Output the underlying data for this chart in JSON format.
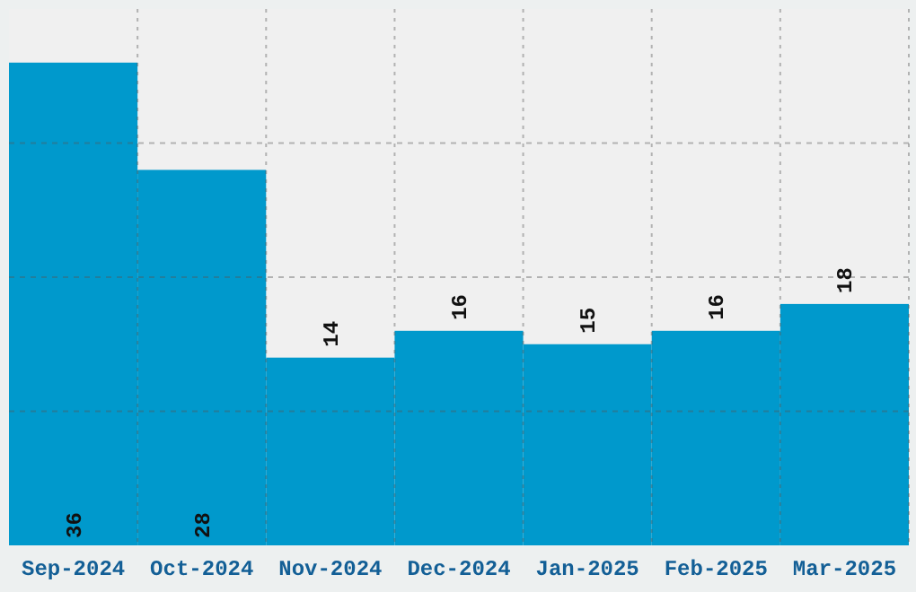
{
  "chart_data": {
    "type": "bar",
    "categories": [
      "Sep-2024",
      "Oct-2024",
      "Nov-2024",
      "Dec-2024",
      "Jan-2025",
      "Feb-2025",
      "Mar-2025"
    ],
    "values": [
      36,
      28,
      14,
      16,
      15,
      16,
      18
    ],
    "color": "#0099cc",
    "ylim": [
      0,
      40
    ],
    "yticks": [
      {
        "value": 10,
        "label": null
      },
      {
        "value": 20,
        "label": null
      },
      {
        "value": 30,
        "label": null
      }
    ],
    "tick_labels": "x",
    "grid": true,
    "data_labels": true
  }
}
